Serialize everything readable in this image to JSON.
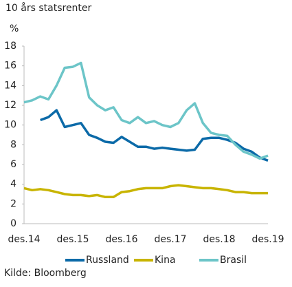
{
  "chart_data": {
    "type": "line",
    "title": "10 års statsrenter",
    "y_label": "%",
    "source": "Kilde: Bloomberg",
    "categories": [
      "des.14",
      null,
      null,
      null,
      null,
      null,
      "des.15",
      null,
      null,
      null,
      null,
      null,
      "des.16",
      null,
      null,
      null,
      null,
      null,
      "des.17",
      null,
      null,
      null,
      null,
      null,
      "des.18",
      null,
      null,
      null,
      null,
      null,
      "des.19"
    ],
    "series": [
      {
        "name": "Russland",
        "color": "#0b6aa8",
        "values": [
          null,
          null,
          10.5,
          10.8,
          11.5,
          9.8,
          10.0,
          10.2,
          9.0,
          8.7,
          8.3,
          8.2,
          8.8,
          8.3,
          7.8,
          7.8,
          7.6,
          7.7,
          7.6,
          7.5,
          7.4,
          7.5,
          8.6,
          8.7,
          8.7,
          8.5,
          8.2,
          7.6,
          7.3,
          6.7,
          6.4
        ]
      },
      {
        "name": "Kina",
        "color": "#c8b400",
        "values": [
          3.6,
          3.4,
          3.5,
          3.4,
          3.2,
          3.0,
          2.9,
          2.9,
          2.8,
          2.9,
          2.7,
          2.7,
          3.2,
          3.3,
          3.5,
          3.6,
          3.6,
          3.6,
          3.8,
          3.9,
          3.8,
          3.7,
          3.6,
          3.6,
          3.5,
          3.4,
          3.2,
          3.2,
          3.1,
          3.1,
          3.1
        ]
      },
      {
        "name": "Brasil",
        "color": "#6cc5c8",
        "values": [
          12.3,
          12.5,
          12.9,
          12.6,
          14.0,
          15.8,
          15.9,
          16.3,
          12.8,
          12.0,
          11.5,
          11.8,
          10.5,
          10.2,
          10.8,
          10.2,
          10.4,
          10.0,
          9.8,
          10.2,
          11.5,
          12.2,
          10.2,
          9.2,
          9.0,
          8.9,
          8.0,
          7.3,
          7.0,
          6.6,
          6.9
        ]
      }
    ],
    "ylim": [
      0,
      18
    ],
    "yticks": [
      0,
      2,
      4,
      6,
      8,
      10,
      12,
      14,
      16,
      18
    ],
    "grid": false
  }
}
